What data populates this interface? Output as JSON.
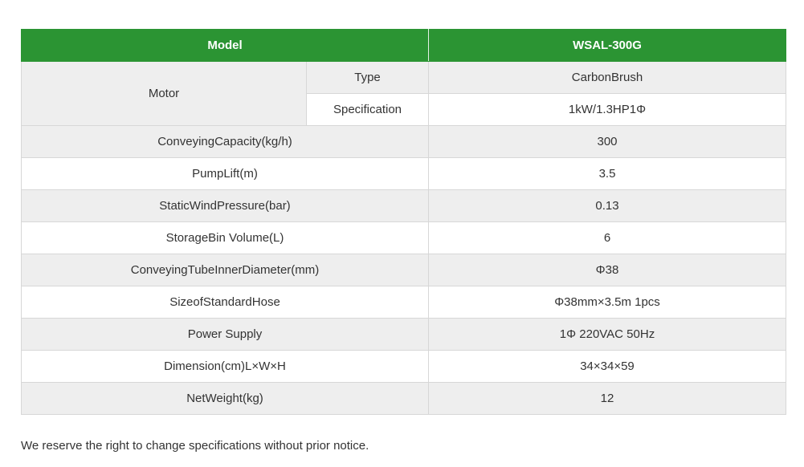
{
  "table": {
    "header": {
      "model_label": "Model",
      "model_value": "WSAL-300G"
    },
    "motor": {
      "label": "Motor",
      "type_label": "Type",
      "type_value": "CarbonBrush",
      "spec_label": "Specification",
      "spec_value": "1kW/1.3HP1Φ"
    },
    "rows": [
      {
        "label": "ConveyingCapacity(kg/h)",
        "value": "300"
      },
      {
        "label": "PumpLift(m)",
        "value": "3.5"
      },
      {
        "label": "StaticWindPressure(bar)",
        "value": "0.13"
      },
      {
        "label": "StorageBin Volume(L)",
        "value": "6"
      },
      {
        "label": "ConveyingTubeInnerDiameter(mm)",
        "value": "Φ38"
      },
      {
        "label": "SizeofStandardHose",
        "value": "Φ38mm×3.5m 1pcs"
      },
      {
        "label": "Power Supply",
        "value": "1Φ 220VAC 50Hz"
      },
      {
        "label": "Dimension(cm)L×W×H",
        "value": "34×34×59"
      },
      {
        "label": "NetWeight(kg)",
        "value": "12"
      }
    ]
  },
  "notice": "We reserve the right to change specifications without prior notice.",
  "colors": {
    "header_green": "#2b9433",
    "row_shade": "#eeeeee",
    "border": "#d7d7d7"
  }
}
